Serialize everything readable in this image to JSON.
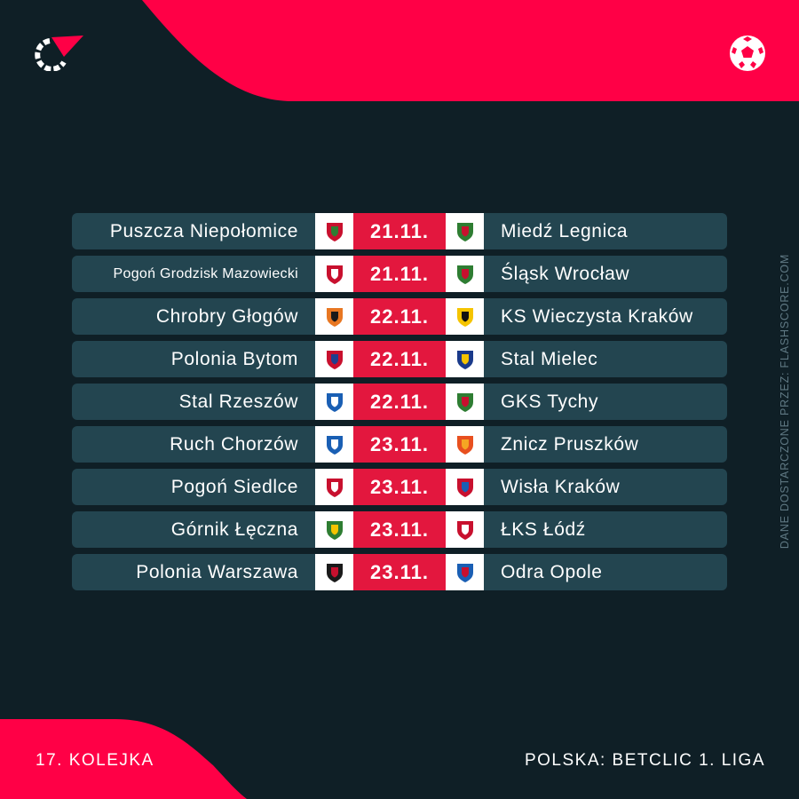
{
  "colors": {
    "background": "#0f1f26",
    "accent": "#e3173e",
    "row": "#234550",
    "crest_bg": "#ffffff"
  },
  "icons": {
    "logo": "flashscore-logo-icon",
    "sport": "football-icon"
  },
  "side_note": "DANE DOSTARCZONE PRZEZ: FLASHSCORE.COM",
  "footer": {
    "round": "17. KOLEJKA",
    "league": "POLSKA: BETCLIC 1. LIGA"
  },
  "fixtures": [
    {
      "home": "Puszcza Niepołomice",
      "date": "21.11.",
      "away": "Miedź Legnica",
      "home_colors": [
        "#c8102e",
        "#2e7d32"
      ],
      "away_colors": [
        "#2e7d32",
        "#c8102e"
      ]
    },
    {
      "home": "Pogoń Grodzisk Mazowiecki",
      "date": "21.11.",
      "away": "Śląsk Wrocław",
      "home_colors": [
        "#c8102e",
        "#ffffff"
      ],
      "away_colors": [
        "#2e7d32",
        "#c8102e"
      ]
    },
    {
      "home": "Chrobry Głogów",
      "date": "22.11.",
      "away": "KS Wieczysta Kraków",
      "home_colors": [
        "#e87722",
        "#1a1a1a"
      ],
      "away_colors": [
        "#f5c400",
        "#111111"
      ]
    },
    {
      "home": "Polonia Bytom",
      "date": "22.11.",
      "away": "Stal Mielec",
      "home_colors": [
        "#c8102e",
        "#1f3f8f"
      ],
      "away_colors": [
        "#1a3a8a",
        "#f5c400"
      ]
    },
    {
      "home": "Stal Rzeszów",
      "date": "22.11.",
      "away": "GKS Tychy",
      "home_colors": [
        "#1a5fb4",
        "#ffffff"
      ],
      "away_colors": [
        "#2e7d32",
        "#c8102e"
      ]
    },
    {
      "home": "Ruch Chorzów",
      "date": "23.11.",
      "away": "Znicz Pruszków",
      "home_colors": [
        "#1a5fb4",
        "#ffffff"
      ],
      "away_colors": [
        "#e8501f",
        "#f5a623"
      ]
    },
    {
      "home": "Pogoń Siedlce",
      "date": "23.11.",
      "away": "Wisła Kraków",
      "home_colors": [
        "#c8102e",
        "#ffffff"
      ],
      "away_colors": [
        "#c8102e",
        "#1a5fb4"
      ]
    },
    {
      "home": "Górnik Łęczna",
      "date": "23.11.",
      "away": "ŁKS Łódź",
      "home_colors": [
        "#2e7d32",
        "#f5c400"
      ],
      "away_colors": [
        "#c8102e",
        "#ffffff"
      ]
    },
    {
      "home": "Polonia Warszawa",
      "date": "23.11.",
      "away": "Odra Opole",
      "home_colors": [
        "#1a1a1a",
        "#c8102e"
      ],
      "away_colors": [
        "#1a5fb4",
        "#c8102e"
      ]
    }
  ]
}
